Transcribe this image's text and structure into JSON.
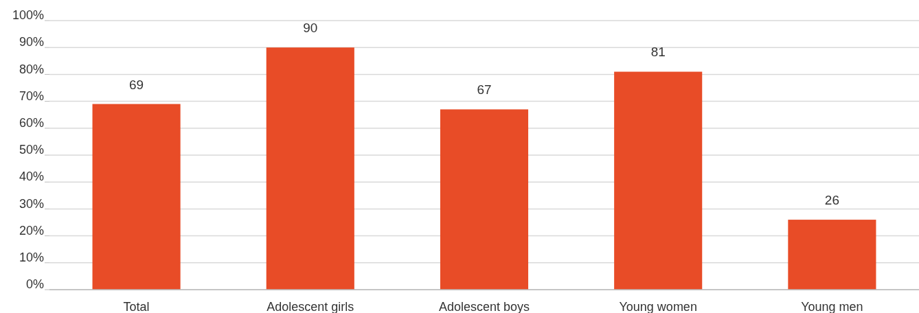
{
  "chart_data": {
    "type": "bar",
    "categories": [
      "Total",
      "Adolescent girls",
      "Adolescent boys",
      "Young women",
      "Young men"
    ],
    "values": [
      69,
      90,
      67,
      81,
      26
    ],
    "color": "#e84c27",
    "data_labels": true,
    "grid": "y",
    "ylim": [
      0,
      100
    ],
    "yticks": [
      {
        "value": 0,
        "label": "0%"
      },
      {
        "value": 10,
        "label": "10%"
      },
      {
        "value": 20,
        "label": "20%"
      },
      {
        "value": 30,
        "label": "30%"
      },
      {
        "value": 40,
        "label": "40%"
      },
      {
        "value": 50,
        "label": "50%"
      },
      {
        "value": 60,
        "label": "60%"
      },
      {
        "value": 70,
        "label": "70%"
      },
      {
        "value": 80,
        "label": "80%"
      },
      {
        "value": 90,
        "label": "90%"
      },
      {
        "value": 100,
        "label": "100%"
      }
    ]
  }
}
